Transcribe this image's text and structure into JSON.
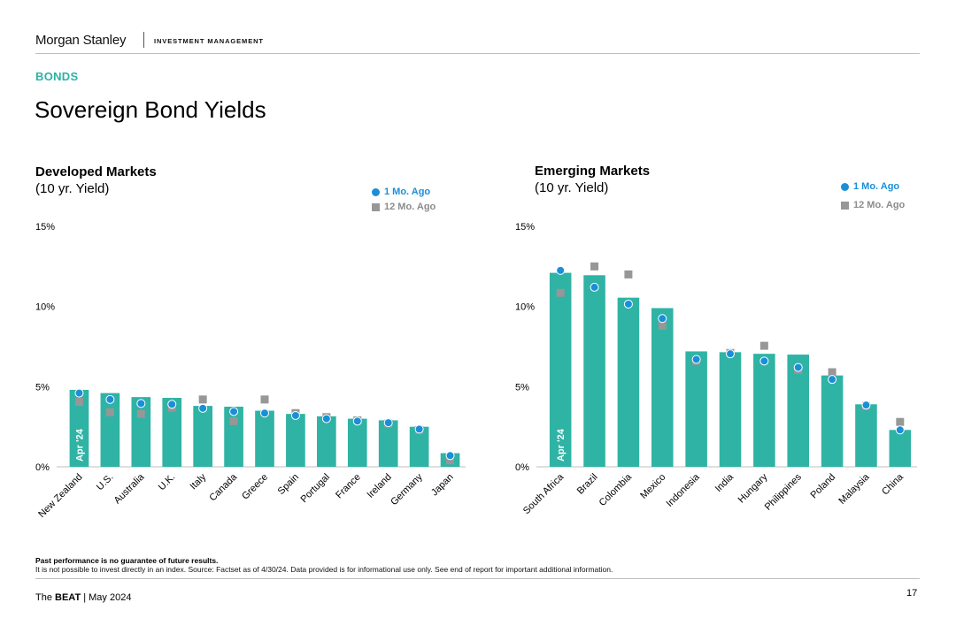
{
  "header": {
    "brand": "Morgan Stanley",
    "division": "INVESTMENT MANAGEMENT",
    "section": "BONDS",
    "title": "Sovereign Bond Yields"
  },
  "colors": {
    "bar": "#2fb3a4",
    "one_month": "#1a8fd8",
    "twelve_month": "#979797",
    "section_label": "#2bb3a3"
  },
  "legend": {
    "one_month_label": "1 Mo. Ago",
    "twelve_month_label": "12 Mo. Ago"
  },
  "chart_data": [
    {
      "type": "bar",
      "title": "Developed Markets",
      "subtitle": "(10 yr. Yield)",
      "bar_tag": "Apr '24",
      "yticks": [
        "0%",
        "5%",
        "10%",
        "15%"
      ],
      "ylim": [
        0,
        15
      ],
      "categories": [
        "New Zealand",
        "U.S.",
        "Australia",
        "U.K.",
        "Italy",
        "Canada",
        "Greece",
        "Spain",
        "Portugal",
        "France",
        "Ireland",
        "Germany",
        "Japan"
      ],
      "series": [
        {
          "name": "Apr '24",
          "marker": "bar",
          "values": [
            4.8,
            4.6,
            4.35,
            4.3,
            3.8,
            3.75,
            3.5,
            3.3,
            3.15,
            3.0,
            2.9,
            2.5,
            0.85
          ]
        },
        {
          "name": "1 Mo. Ago",
          "marker": "circle",
          "values": [
            4.6,
            4.2,
            3.95,
            3.9,
            3.65,
            3.45,
            3.35,
            3.2,
            3.0,
            2.85,
            2.75,
            2.35,
            0.7
          ]
        },
        {
          "name": "12 Mo. Ago",
          "marker": "square",
          "values": [
            4.05,
            3.4,
            3.3,
            3.7,
            4.2,
            2.85,
            4.2,
            3.35,
            3.1,
            2.9,
            2.7,
            2.3,
            0.4
          ]
        }
      ],
      "legend_position": "top-right",
      "grid": false
    },
    {
      "type": "bar",
      "title": "Emerging Markets",
      "subtitle": "(10 yr. Yield)",
      "bar_tag": "Apr '24",
      "yticks": [
        "0%",
        "5%",
        "10%",
        "15%"
      ],
      "ylim": [
        0,
        15
      ],
      "categories": [
        "South Africa",
        "Brazil",
        "Colombia",
        "Mexico",
        "Indonesia",
        "India",
        "Hungary",
        "Philippines",
        "Poland",
        "Malaysia",
        "China"
      ],
      "series": [
        {
          "name": "Apr '24",
          "marker": "bar",
          "values": [
            12.1,
            11.95,
            10.55,
            9.9,
            7.2,
            7.15,
            7.05,
            7.0,
            5.7,
            3.9,
            2.3
          ]
        },
        {
          "name": "1 Mo. Ago",
          "marker": "circle",
          "values": [
            12.25,
            11.2,
            10.15,
            9.25,
            6.7,
            7.05,
            6.6,
            6.2,
            5.45,
            3.85,
            2.3
          ]
        },
        {
          "name": "12 Mo. Ago",
          "marker": "square",
          "values": [
            10.85,
            12.5,
            12.0,
            8.8,
            6.6,
            7.1,
            7.55,
            6.05,
            5.9,
            3.8,
            2.8
          ]
        }
      ],
      "legend_position": "top-right",
      "grid": false
    }
  ],
  "footer": {
    "disclaimer_bold": "Past performance is no guarantee of future results.",
    "disclaimer": "It is not possible to invest directly in an index. Source: Factset as of 4/30/24. Data provided is for informational use only. See end of report for important additional information.",
    "publication_prefix": "The",
    "publication_name": "BEAT",
    "publication_date": "| May 2024",
    "page_number": "17"
  }
}
